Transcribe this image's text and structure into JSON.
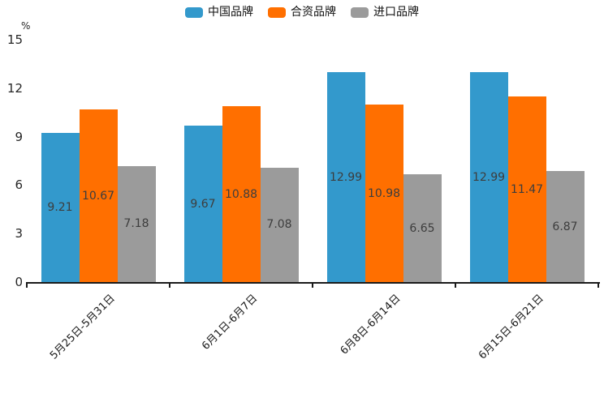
{
  "chart_data": {
    "type": "bar",
    "title": "",
    "xlabel": "",
    "ylabel": "%",
    "categories": [
      "5月25日-5月31日",
      "6月1日-6月7日",
      "6月8日-6月14日",
      "6月15日-6月21日"
    ],
    "series": [
      {
        "name": "中国品牌",
        "color": "#3399cc",
        "values": [
          9.21,
          9.67,
          12.99,
          12.99
        ]
      },
      {
        "name": "合资品牌",
        "color": "#ff6f00",
        "values": [
          10.67,
          10.88,
          10.98,
          11.47
        ]
      },
      {
        "name": "进口品牌",
        "color": "#9b9b9b",
        "values": [
          7.18,
          7.08,
          6.65,
          6.87
        ]
      }
    ],
    "yticks": [
      0,
      3,
      6,
      9,
      12,
      15
    ],
    "ylim": [
      0,
      15
    ],
    "grid": false,
    "legend_position": "top-center",
    "value_labels": "centered-inside-bars",
    "colors": {
      "axis": "#1a1a1a",
      "tick_text": "#262626",
      "value_text": "#3d3d3d",
      "background": "#ffffff"
    }
  }
}
